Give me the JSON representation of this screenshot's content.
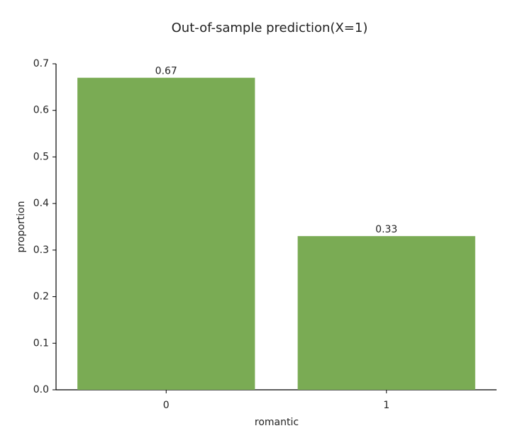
{
  "chart_data": {
    "type": "bar",
    "title": "Out-of-sample prediction(X=1)",
    "x_label": "romantic",
    "y_label": "proportion",
    "categories": [
      "0",
      "1"
    ],
    "values": [
      0.67,
      0.33
    ],
    "color": "#7aab54",
    "ylim": [
      0,
      0.7
    ],
    "yticks": [
      {
        "value": 0,
        "label": "0.0"
      },
      0.1,
      0.2,
      0.3,
      0.4,
      0.5,
      0.6,
      0.7
    ],
    "grid": false
  }
}
